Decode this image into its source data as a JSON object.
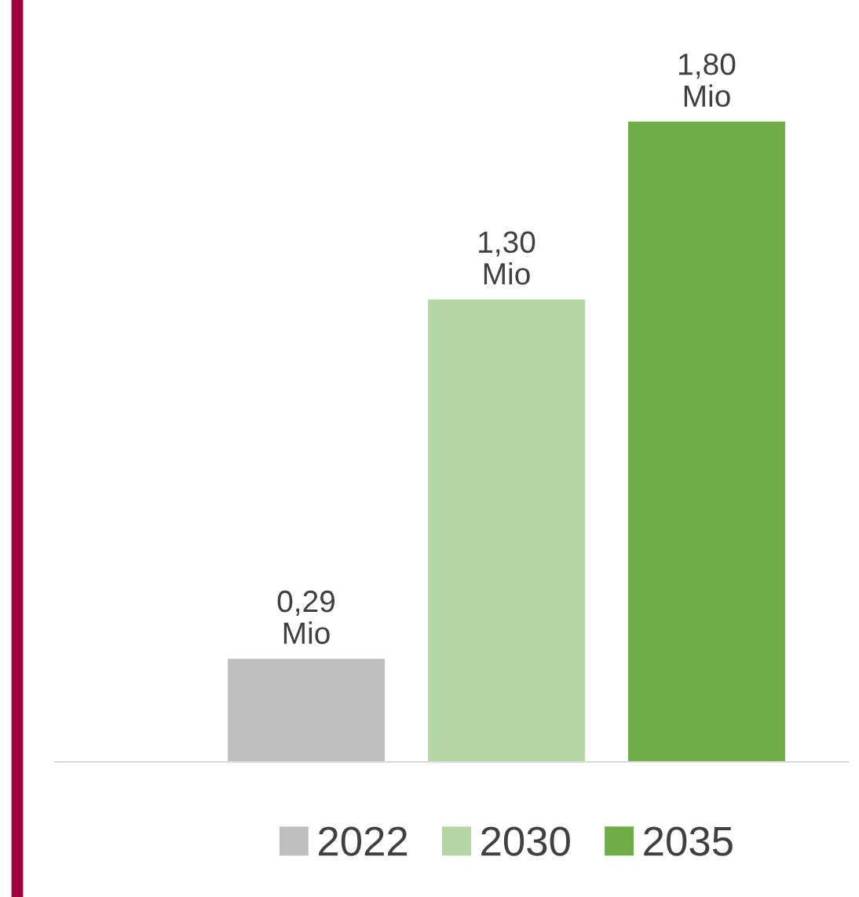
{
  "chart_data": {
    "type": "bar",
    "categories": [
      null
    ],
    "series": [
      {
        "name": "2022",
        "color": "#bfbfbf",
        "values": [
          0.29
        ],
        "value_labels": [
          "0,29\nMio"
        ]
      },
      {
        "name": "2030",
        "color": "#b4d6a4",
        "values": [
          1.3
        ],
        "value_labels": [
          "1,30\nMio"
        ]
      },
      {
        "name": "2035",
        "color": "#70ad47",
        "values": [
          1.8
        ],
        "value_labels": [
          "1,80\nMio"
        ]
      }
    ],
    "legend": "bottom",
    "grid": false
  }
}
